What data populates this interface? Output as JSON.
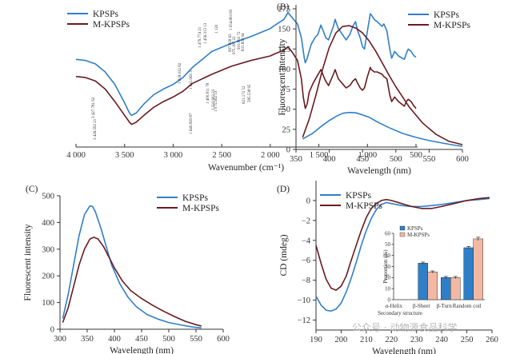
{
  "colors": {
    "kpsps": "#2f7fc8",
    "mkpsps": "#6b1a1f",
    "inset_kpsps": "#2f7fc8",
    "inset_mkpsps": "#f2b8a4",
    "axis": "#333333"
  },
  "watermark": "公众号 · 动物源食品科学",
  "chart_data": [
    {
      "type": "line",
      "panel": "",
      "xlabel": "Wavenumber (cm⁻¹)",
      "ylabel": "",
      "xlim": [
        4000,
        500
      ],
      "reversed_x": true,
      "y_ticks_shown": false,
      "x_ticks": [
        4000,
        3500,
        3000,
        2500,
        2000,
        1500,
        1000,
        500
      ],
      "x_tick_labels": [
        "4 000",
        "3 500",
        "3 000",
        "2 500",
        "2 000",
        "1 500",
        "1 000",
        "500"
      ],
      "ylim": [
        0,
        100
      ],
      "series": [
        {
          "name": "KPSPs",
          "x": [
            4000,
            3900,
            3800,
            3700,
            3600,
            3500,
            3450,
            3427,
            3380,
            3300,
            3200,
            3100,
            3000,
            2900,
            2800,
            2600,
            2400,
            2200,
            2000,
            1950,
            1860,
            1818,
            1780,
            1720,
            1680,
            1650,
            1640,
            1620,
            1580,
            1540,
            1510,
            1479,
            1450,
            1430,
            1400,
            1380,
            1350,
            1333,
            1300,
            1250,
            1220,
            1180,
            1150,
            1123,
            1100,
            1075,
            1050,
            1030,
            1000,
            970,
            960,
            930,
            900,
            850,
            831,
            800,
            770,
            750,
            720,
            680,
            620,
            600,
            580,
            550,
            520,
            500
          ],
          "y": [
            55,
            54,
            51,
            44,
            33,
            17,
            8,
            6,
            8,
            16,
            24,
            29,
            33,
            39,
            48,
            62,
            69,
            75,
            82,
            85,
            90,
            96,
            92,
            86,
            74,
            56,
            52,
            56,
            68,
            74,
            77,
            85,
            79,
            74,
            72,
            77,
            84,
            90,
            82,
            76,
            72,
            77,
            84,
            88,
            80,
            74,
            66,
            64,
            80,
            95,
            94,
            90,
            88,
            84,
            86,
            80,
            64,
            56,
            62,
            58,
            55,
            60,
            64,
            62,
            58,
            57
          ]
        },
        {
          "name": "M-KPSPs",
          "x": [
            4000,
            3900,
            3800,
            3700,
            3600,
            3500,
            3450,
            3427,
            3380,
            3300,
            3200,
            3100,
            3000,
            2900,
            2800,
            2600,
            2400,
            2200,
            2000,
            1950,
            1860,
            1818,
            1780,
            1720,
            1680,
            1660,
            1640,
            1620,
            1600,
            1560,
            1520,
            1479,
            1450,
            1430,
            1400,
            1380,
            1350,
            1333,
            1300,
            1250,
            1220,
            1180,
            1150,
            1123,
            1100,
            1075,
            1050,
            1030,
            1000,
            970,
            960,
            930,
            900,
            850,
            831,
            800,
            770,
            750,
            720,
            680,
            620,
            600,
            580,
            550,
            520,
            500
          ],
          "y": [
            40,
            39,
            36,
            29,
            18,
            6,
            0,
            -2,
            0,
            6,
            13,
            18,
            22,
            27,
            34,
            42,
            49,
            54,
            58,
            60,
            63,
            66,
            62,
            54,
            38,
            22,
            12,
            16,
            26,
            34,
            40,
            46,
            40,
            36,
            32,
            36,
            42,
            46,
            38,
            33,
            30,
            32,
            36,
            38,
            34,
            30,
            28,
            30,
            40,
            48,
            46,
            44,
            44,
            42,
            40,
            38,
            24,
            18,
            22,
            18,
            14,
            18,
            20,
            18,
            14,
            12
          ]
        }
      ],
      "annotations": [
        "3 427.781 62",
        "3 426.592 21",
        "1 818.032 82",
        "1 641.065 3",
        "1 640.839 87",
        "1 479.774 21",
        "1 456.313 13",
        "1 400.811 78",
        "1 332.902 23",
        "1 075.562 53",
        "1 120",
        "997.858 63",
        "975.187 22",
        "1 054.803 83",
        "910.893 72",
        "831.833 94",
        "621.172 52",
        "585.538 95"
      ],
      "legend": [
        "KPSPs",
        "M-KPSPs"
      ]
    },
    {
      "type": "line",
      "panel": "(B)",
      "xlabel": "Wavelength (nm)",
      "ylabel": "Fluorescent intensity",
      "xlim": [
        350,
        600
      ],
      "ylim": [
        0,
        180
      ],
      "x_ticks": [
        350,
        400,
        450,
        500,
        550,
        600
      ],
      "y_ticks": [
        0,
        25,
        50,
        75,
        100,
        125,
        150,
        175
      ],
      "x_tick_labels": [
        "350",
        "400",
        "450",
        "500",
        "550",
        "600"
      ],
      "y_tick_labels": [
        "0",
        "25",
        "50",
        "75",
        "100",
        "125",
        "150",
        "175"
      ],
      "series": [
        {
          "name": "KPSPs",
          "x": [
            360,
            375,
            390,
            400,
            410,
            420,
            430,
            440,
            450,
            460,
            475,
            490,
            510,
            530,
            550,
            570,
            590,
            600
          ],
          "y": [
            13,
            20,
            30,
            36,
            41,
            45,
            46,
            45.5,
            43,
            40,
            33,
            27,
            20,
            15,
            11,
            8,
            5,
            4
          ]
        },
        {
          "name": "M-KPSPs",
          "x": [
            360,
            370,
            380,
            390,
            400,
            410,
            420,
            430,
            440,
            450,
            460,
            470,
            480,
            490,
            500,
            520,
            540,
            560,
            580,
            600
          ],
          "y": [
            15,
            38,
            68,
            100,
            127,
            145,
            153,
            154,
            151,
            145,
            135,
            122,
            107,
            92,
            78,
            53,
            33,
            19,
            10,
            6
          ]
        }
      ],
      "legend": [
        "KPSPs",
        "M-KPSPs"
      ]
    },
    {
      "type": "line",
      "panel": "(C)",
      "xlabel": "Wavelength (nm)",
      "ylabel": "Fluorescent intensity",
      "xlim": [
        300,
        600
      ],
      "ylim": [
        0,
        500
      ],
      "x_ticks": [
        300,
        350,
        400,
        450,
        500,
        550,
        600
      ],
      "y_ticks": [
        0,
        100,
        200,
        300,
        400,
        500
      ],
      "x_tick_labels": [
        "300",
        "350",
        "400",
        "450",
        "500",
        "550",
        "600"
      ],
      "y_tick_labels": [
        "0",
        "100",
        "200",
        "300",
        "400",
        "500"
      ],
      "series": [
        {
          "name": "KPSPs",
          "x": [
            305,
            315,
            325,
            335,
            345,
            355,
            360,
            365,
            375,
            385,
            395,
            410,
            425,
            440,
            460,
            480,
            500,
            525,
            545,
            560
          ],
          "y": [
            40,
            130,
            240,
            350,
            430,
            462,
            460,
            440,
            380,
            310,
            240,
            170,
            120,
            85,
            55,
            38,
            25,
            15,
            8,
            5
          ]
        },
        {
          "name": "M-KPSPs",
          "x": [
            305,
            315,
            325,
            335,
            345,
            355,
            362,
            370,
            380,
            390,
            400,
            415,
            430,
            450,
            470,
            490,
            510,
            530,
            550,
            560
          ],
          "y": [
            25,
            80,
            160,
            240,
            300,
            338,
            345,
            338,
            310,
            270,
            230,
            180,
            145,
            115,
            90,
            68,
            48,
            30,
            17,
            12
          ]
        }
      ],
      "legend": [
        "KPSPs",
        "M-KPSPs"
      ]
    },
    {
      "type": "line",
      "panel": "(D)",
      "xlabel": "Wavelength (nm)",
      "ylabel": "CD (mdeg)",
      "xlim": [
        190,
        260
      ],
      "ylim": [
        -13,
        2
      ],
      "x_ticks": [
        190,
        200,
        210,
        220,
        230,
        240,
        250,
        260
      ],
      "y_ticks": [
        -12,
        -10,
        -8,
        -6,
        -4,
        -2,
        0
      ],
      "x_tick_labels": [
        "190",
        "200",
        "210",
        "220",
        "230",
        "240",
        "250",
        "260"
      ],
      "y_tick_labels": [
        "−12",
        "−10",
        "−8",
        "−6",
        "−4",
        "−2",
        "0"
      ],
      "series": [
        {
          "name": "KPSPs",
          "x": [
            190,
            192,
            194,
            196,
            198,
            200,
            202,
            204,
            206,
            208,
            210,
            212,
            214,
            216,
            218,
            220,
            224,
            228,
            232,
            236,
            240,
            245,
            250,
            255,
            259
          ],
          "y": [
            -9.6,
            -10.5,
            -11,
            -11.1,
            -10.9,
            -10.3,
            -9.2,
            -7.8,
            -6.2,
            -4.5,
            -3.0,
            -1.8,
            -0.9,
            -0.4,
            -0.2,
            -0.3,
            -0.5,
            -0.6,
            -0.6,
            -0.5,
            -0.4,
            -0.2,
            0,
            0.1,
            0.2
          ]
        },
        {
          "name": "M-KPSPs",
          "x": [
            190,
            192,
            194,
            196,
            198,
            200,
            202,
            204,
            206,
            208,
            210,
            212,
            214,
            216,
            218,
            220,
            224,
            228,
            232,
            236,
            240,
            245,
            250,
            255,
            259
          ],
          "y": [
            -4.5,
            -6.3,
            -7.9,
            -8.8,
            -9.0,
            -8.6,
            -7.6,
            -6.0,
            -4.5,
            -3.0,
            -1.7,
            -0.8,
            -0.3,
            0,
            0.1,
            0,
            -0.3,
            -0.6,
            -0.8,
            -0.8,
            -0.6,
            -0.3,
            0,
            0.2,
            0.3
          ]
        }
      ],
      "legend": [
        "KPSPs",
        "M-KPSPs"
      ]
    },
    {
      "type": "bar",
      "panel": "inset",
      "xlabel": "Secondary structure",
      "ylabel": "Proportion (%)",
      "ylim": [
        0,
        60
      ],
      "y_ticks": [
        0,
        10,
        20,
        30,
        40,
        50,
        60
      ],
      "y_tick_labels": [
        "0",
        "10",
        "20",
        "30",
        "40",
        "50",
        "60"
      ],
      "categories": [
        "α-Helix",
        "β-Sheet",
        "β-Turn",
        "Random coil"
      ],
      "series": [
        {
          "name": "KPSPs",
          "values": [
            0,
            33,
            20,
            47
          ],
          "errors": [
            0,
            1,
            1,
            1
          ]
        },
        {
          "name": "M-KPSPs",
          "values": [
            0,
            25,
            20,
            55
          ],
          "errors": [
            0,
            1,
            1,
            1.5
          ]
        }
      ],
      "legend": [
        "KPSPs",
        "M-KPSPs"
      ]
    }
  ]
}
